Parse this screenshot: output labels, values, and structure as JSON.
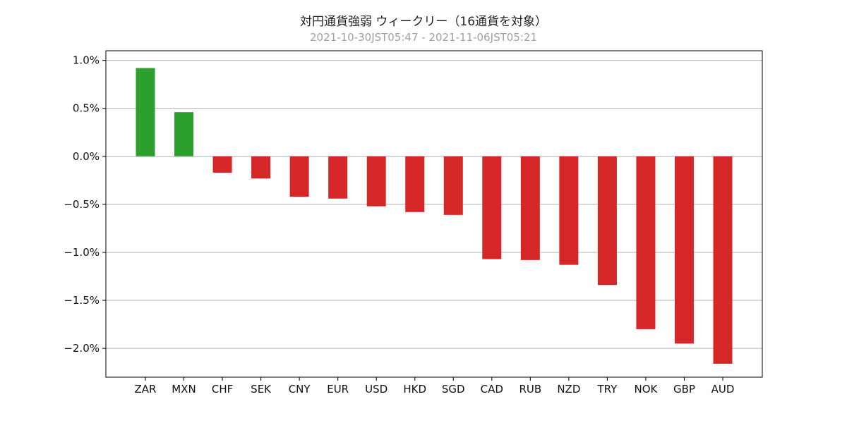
{
  "chart_data": {
    "type": "bar",
    "title": "対円通貨強弱 ウィークリー（16通貨を対象）",
    "subtitle": "2021-10-30JST05:47 - 2021-11-06JST05:21",
    "xlabel": "",
    "ylabel": "",
    "categories": [
      "ZAR",
      "MXN",
      "CHF",
      "SEK",
      "CNY",
      "EUR",
      "USD",
      "HKD",
      "SGD",
      "CAD",
      "RUB",
      "NZD",
      "TRY",
      "NOK",
      "GBP",
      "AUD"
    ],
    "values": [
      0.92,
      0.46,
      -0.17,
      -0.23,
      -0.42,
      -0.44,
      -0.52,
      -0.58,
      -0.61,
      -1.07,
      -1.08,
      -1.13,
      -1.34,
      -1.8,
      -1.95,
      -2.16
    ],
    "ylim": [
      -2.3,
      1.1
    ],
    "yticks": [
      1.0,
      0.5,
      0.0,
      -0.5,
      -1.0,
      -1.5,
      -2.0
    ],
    "ytick_labels": [
      "1.0%",
      "0.5%",
      "0.0%",
      "−0.5%",
      "−1.0%",
      "−1.5%",
      "−2.0%"
    ],
    "grid": "y",
    "legend": "none",
    "colors": {
      "positive": "#2ca02c",
      "negative": "#d62728",
      "grid": "#b0b0b0",
      "axis": "#000000"
    }
  }
}
